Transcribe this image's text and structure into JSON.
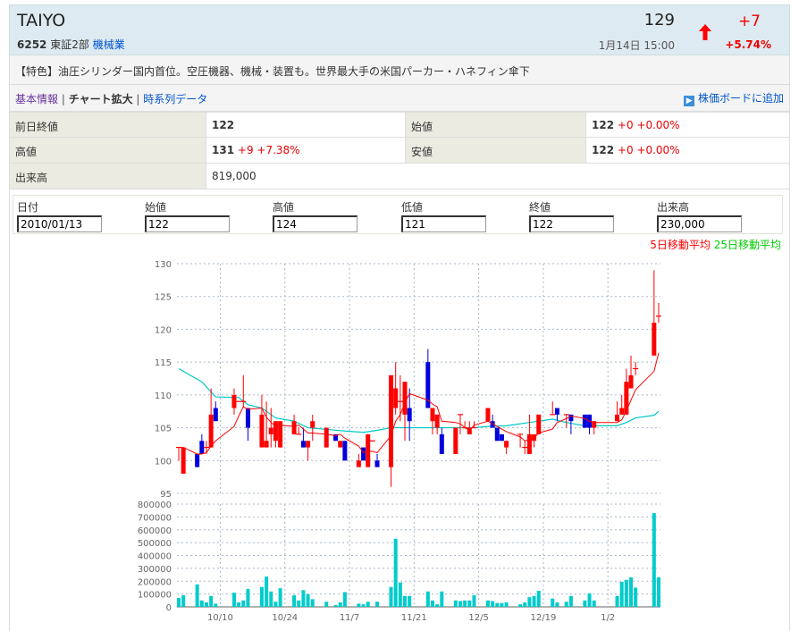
{
  "header": {
    "name": "TAIYO",
    "price": "129",
    "code": "6252",
    "market": "東証2部",
    "sector": "機械業",
    "datetime": "1月14日 15:00",
    "change": "+7",
    "change_pct": "+5.74%",
    "trend_icon": "arrow-up-icon",
    "up_color": "#ff0000"
  },
  "description": "【特色】油圧シリンダー国内首位。空圧機器、機械・装置も。世界最大手の米国パーカー・ハネフィン傘下",
  "nav": {
    "basic": "基本情報",
    "chart": "チャート拡大",
    "timeseries": "時系列データ",
    "add_board": "株価ボードに追加"
  },
  "info": {
    "prev_close_label": "前日終値",
    "prev_close": "122",
    "open_label": "始値",
    "open": "122",
    "open_chg": "+0 +0.00%",
    "high_label": "高値",
    "high": "131",
    "high_chg": "+9 +7.38%",
    "low_label": "安値",
    "low": "122",
    "low_chg": "+0 +0.00%",
    "volume_label": "出来高",
    "volume": "819,000"
  },
  "form": {
    "headers": [
      "日付",
      "始値",
      "高値",
      "低値",
      "終値",
      "出来高"
    ],
    "values": [
      "2010/01/13",
      "122",
      "124",
      "121",
      "122",
      "230,000"
    ]
  },
  "legend": {
    "ma5": "5日移動平均",
    "ma25": "25日移動平均",
    "ma5_color": "#ff0000",
    "ma25_color": "#00cc00"
  },
  "chart_data": {
    "type": "candlestick",
    "price_ylim": [
      95,
      130
    ],
    "price_ticks": [
      "95",
      "100",
      "105",
      "110",
      "115",
      "120",
      "125",
      "130"
    ],
    "volume_ylim": [
      0,
      800000
    ],
    "volume_ticks": [
      "0",
      "100000",
      "200000",
      "300000",
      "400000",
      "500000",
      "600000",
      "700000",
      "800000"
    ],
    "x_ticks": [
      {
        "date": "2009-10-10",
        "label": "10/10"
      },
      {
        "date": "2009-10-24",
        "label": "10/24"
      },
      {
        "date": "2009-11-07",
        "label": "11/7"
      },
      {
        "date": "2009-11-21",
        "label": "11/21"
      },
      {
        "date": "2009-12-05",
        "label": "12/5"
      },
      {
        "date": "2009-12-19",
        "label": "12/19"
      },
      {
        "date": "2010-01-02",
        "label": "1/2"
      }
    ],
    "x_range": [
      "2009-10-01",
      "2010-01-13"
    ],
    "grid": true,
    "colors": {
      "up": "#ff0000",
      "down": "#0000dd",
      "volume": "#00cccc",
      "ma5": "#ff0000",
      "ma25": "#00c8c8"
    },
    "candles_columns": [
      "date",
      "open",
      "high",
      "low",
      "close",
      "volume"
    ],
    "candles": [
      [
        "2009-10-01",
        102,
        102,
        100,
        102,
        70000
      ],
      [
        "2009-10-02",
        98,
        102,
        98,
        102,
        90000
      ],
      [
        "2009-10-05",
        101,
        101,
        99,
        99,
        175000
      ],
      [
        "2009-10-06",
        103,
        104,
        101,
        101,
        50000
      ],
      [
        "2009-10-07",
        102,
        103,
        101,
        102,
        35000
      ],
      [
        "2009-10-08",
        102,
        111,
        102,
        107,
        85000
      ],
      [
        "2009-10-09",
        108,
        109,
        106,
        106,
        25000
      ],
      [
        "2009-10-13",
        108,
        111,
        107,
        110,
        110000
      ],
      [
        "2009-10-14",
        109,
        109,
        109,
        109,
        35000
      ],
      [
        "2009-10-15",
        109,
        113,
        108,
        109,
        50000
      ],
      [
        "2009-10-16",
        108,
        108,
        103,
        105,
        140000
      ],
      [
        "2009-10-19",
        102,
        110,
        102,
        107,
        155000
      ],
      [
        "2009-10-20",
        102,
        109,
        102,
        103,
        235000
      ],
      [
        "2009-10-21",
        104,
        108,
        102,
        105,
        120000
      ],
      [
        "2009-10-22",
        103,
        106,
        102,
        106,
        40000
      ],
      [
        "2009-10-23",
        102,
        106,
        102,
        106,
        145000
      ],
      [
        "2009-10-26",
        104,
        107,
        104,
        106,
        90000
      ],
      [
        "2009-10-27",
        104,
        105,
        104,
        104,
        50000
      ],
      [
        "2009-10-28",
        103,
        105,
        102,
        102,
        130000
      ],
      [
        "2009-10-29",
        102,
        103,
        100,
        103,
        100000
      ],
      [
        "2009-10-30",
        105,
        107,
        103,
        106,
        60000
      ],
      [
        "2009-11-02",
        102,
        105,
        102,
        105,
        40000
      ],
      [
        "2009-11-04",
        104,
        104,
        103,
        103,
        15000
      ],
      [
        "2009-11-05",
        102,
        103,
        102,
        103,
        35000
      ],
      [
        "2009-11-06",
        103,
        103,
        100,
        100,
        115000
      ],
      [
        "2009-11-09",
        99,
        101,
        99,
        100,
        25000
      ],
      [
        "2009-11-10",
        102,
        102,
        100,
        100,
        20000
      ],
      [
        "2009-11-11",
        99,
        104,
        99,
        104,
        40000
      ],
      [
        "2009-11-12",
        103,
        103,
        103,
        103,
        0
      ],
      [
        "2009-11-13",
        100,
        101,
        99,
        99,
        40000
      ],
      [
        "2009-11-16",
        99,
        113,
        96,
        113,
        155000
      ],
      [
        "2009-11-17",
        108,
        115,
        107,
        111,
        530000
      ],
      [
        "2009-11-18",
        109,
        113,
        106,
        109,
        190000
      ],
      [
        "2009-11-19",
        107,
        112,
        103,
        112,
        85000
      ],
      [
        "2009-11-20",
        108,
        111,
        103,
        106,
        85000
      ],
      [
        "2009-11-24",
        115,
        117,
        108,
        108,
        120000
      ],
      [
        "2009-11-25",
        106,
        108,
        104,
        108,
        50000
      ],
      [
        "2009-11-26",
        105,
        107,
        104,
        107,
        20000
      ],
      [
        "2009-11-27",
        104,
        105,
        101,
        101,
        120000
      ],
      [
        "2009-11-30",
        101,
        105,
        101,
        105,
        50000
      ],
      [
        "2009-12-01",
        107,
        107,
        104,
        107,
        45000
      ],
      [
        "2009-12-02",
        105,
        106,
        105,
        105,
        50000
      ],
      [
        "2009-12-03",
        104,
        106,
        104,
        105,
        50000
      ],
      [
        "2009-12-04",
        105,
        106,
        105,
        105,
        90000
      ],
      [
        "2009-12-07",
        106,
        108,
        106,
        108,
        50000
      ],
      [
        "2009-12-08",
        106,
        107,
        105,
        105,
        45000
      ],
      [
        "2009-12-09",
        105,
        105,
        103,
        103,
        30000
      ],
      [
        "2009-12-10",
        104,
        104,
        103,
        103,
        30000
      ],
      [
        "2009-12-11",
        102,
        103,
        101,
        103,
        35000
      ],
      [
        "2009-12-14",
        104,
        104,
        102,
        104,
        20000
      ],
      [
        "2009-12-15",
        102,
        103,
        101,
        102,
        35000
      ],
      [
        "2009-12-16",
        101,
        107,
        101,
        104,
        75000
      ],
      [
        "2009-12-17",
        103,
        104,
        102,
        104,
        85000
      ],
      [
        "2009-12-18",
        104,
        107,
        104,
        107,
        125000
      ],
      [
        "2009-12-21",
        107,
        109,
        107,
        107,
        65000
      ],
      [
        "2009-12-22",
        108,
        108,
        106,
        107,
        35000
      ],
      [
        "2009-12-24",
        107,
        107,
        105,
        107,
        40000
      ],
      [
        "2009-12-25",
        107,
        107,
        104,
        106,
        85000
      ],
      [
        "2009-12-28",
        107,
        107,
        105,
        105,
        50000
      ],
      [
        "2009-12-29",
        107,
        107,
        104,
        105,
        105000
      ],
      [
        "2009-12-30",
        105,
        106,
        104,
        106,
        50000
      ],
      [
        "2010-01-04",
        106,
        109,
        106,
        107,
        85000
      ],
      [
        "2010-01-05",
        107,
        110,
        107,
        108,
        195000
      ],
      [
        "2010-01-06",
        107,
        114,
        107,
        112,
        210000
      ],
      [
        "2010-01-07",
        111,
        116,
        111,
        113,
        230000
      ],
      [
        "2010-01-08",
        114,
        115,
        113,
        114,
        150000
      ],
      [
        "2010-01-12",
        116,
        129,
        116,
        121,
        730000
      ],
      [
        "2010-01-13",
        122,
        124,
        121,
        122,
        230000
      ]
    ],
    "ma25": [
      [
        "2009-10-01",
        114
      ],
      [
        "2009-10-06",
        112
      ],
      [
        "2009-10-09",
        109.7
      ],
      [
        "2009-10-14",
        109.6
      ],
      [
        "2009-10-16",
        108.5
      ],
      [
        "2009-10-19",
        108
      ],
      [
        "2009-10-22",
        106.5
      ],
      [
        "2009-10-26",
        106
      ],
      [
        "2009-10-29",
        105
      ],
      [
        "2009-11-06",
        104.5
      ],
      [
        "2009-11-10",
        104.3
      ],
      [
        "2009-11-13",
        104.6
      ],
      [
        "2009-11-16",
        105
      ],
      [
        "2009-12-04",
        105
      ],
      [
        "2009-12-07",
        105.2
      ],
      [
        "2009-12-11",
        105.3
      ],
      [
        "2009-12-16",
        105.8
      ],
      [
        "2009-12-21",
        106.3
      ],
      [
        "2009-12-24",
        105.8
      ],
      [
        "2009-12-28",
        105.3
      ],
      [
        "2010-01-04",
        105.3
      ],
      [
        "2010-01-06",
        105.8
      ],
      [
        "2010-01-08",
        106.5
      ],
      [
        "2010-01-12",
        106.9
      ],
      [
        "2010-01-13",
        107.5
      ]
    ]
  }
}
